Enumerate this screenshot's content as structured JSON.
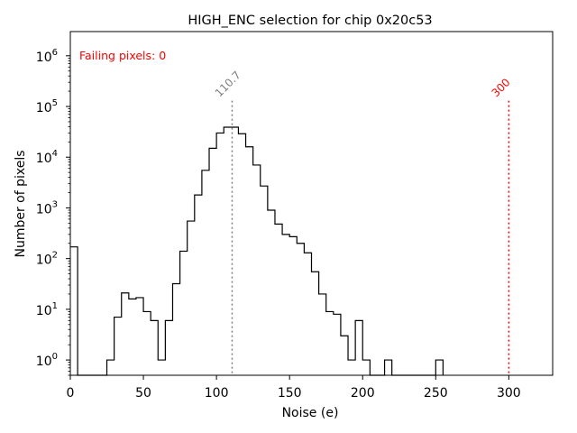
{
  "chart_data": {
    "type": "step-histogram",
    "title": "HIGH_ENC selection for chip 0x20c53",
    "xlabel": "Noise (e)",
    "ylabel": "Number of pixels",
    "xlim": [
      0,
      330
    ],
    "ylim": [
      0.5,
      3000000
    ],
    "yscale": "log",
    "x_ticks": [
      0,
      50,
      100,
      150,
      200,
      250,
      300
    ],
    "y_ticks": [
      {
        "value": 1,
        "label": "10",
        "exp": "0"
      },
      {
        "value": 10,
        "label": "10",
        "exp": "1"
      },
      {
        "value": 100,
        "label": "10",
        "exp": "2"
      },
      {
        "value": 1000,
        "label": "10",
        "exp": "3"
      },
      {
        "value": 10000,
        "label": "10",
        "exp": "4"
      },
      {
        "value": 100000,
        "label": "10",
        "exp": "5"
      },
      {
        "value": 1000000,
        "label": "10",
        "exp": "6"
      }
    ],
    "bin_edges": [
      0,
      5,
      10,
      15,
      20,
      25,
      30,
      35,
      40,
      45,
      50,
      55,
      60,
      65,
      70,
      75,
      80,
      85,
      90,
      95,
      100,
      105,
      110,
      115,
      120,
      125,
      130,
      135,
      140,
      145,
      150,
      155,
      160,
      165,
      170,
      175,
      180,
      185,
      190,
      195,
      200,
      205,
      210,
      215,
      220,
      225,
      230,
      235,
      240,
      245,
      250,
      255
    ],
    "counts": [
      170,
      0,
      0,
      0,
      0,
      1,
      7,
      21,
      16,
      17,
      9,
      6,
      1,
      6,
      32,
      140,
      550,
      1800,
      5500,
      15000,
      30000,
      39000,
      39000,
      29000,
      16000,
      7000,
      2700,
      900,
      480,
      300,
      270,
      200,
      130,
      55,
      20,
      9,
      8,
      3,
      1,
      6,
      1,
      0,
      0,
      1,
      0,
      0,
      0,
      0,
      0,
      0,
      1
    ],
    "vlines": [
      {
        "x": 110.7,
        "label": "110.7",
        "color": "#808080"
      },
      {
        "x": 300,
        "label": "300",
        "color": "#ff0000"
      }
    ],
    "annotation": {
      "text": "Failing pixels: 0",
      "color": "#ff0000"
    },
    "step_color": "#000000"
  }
}
